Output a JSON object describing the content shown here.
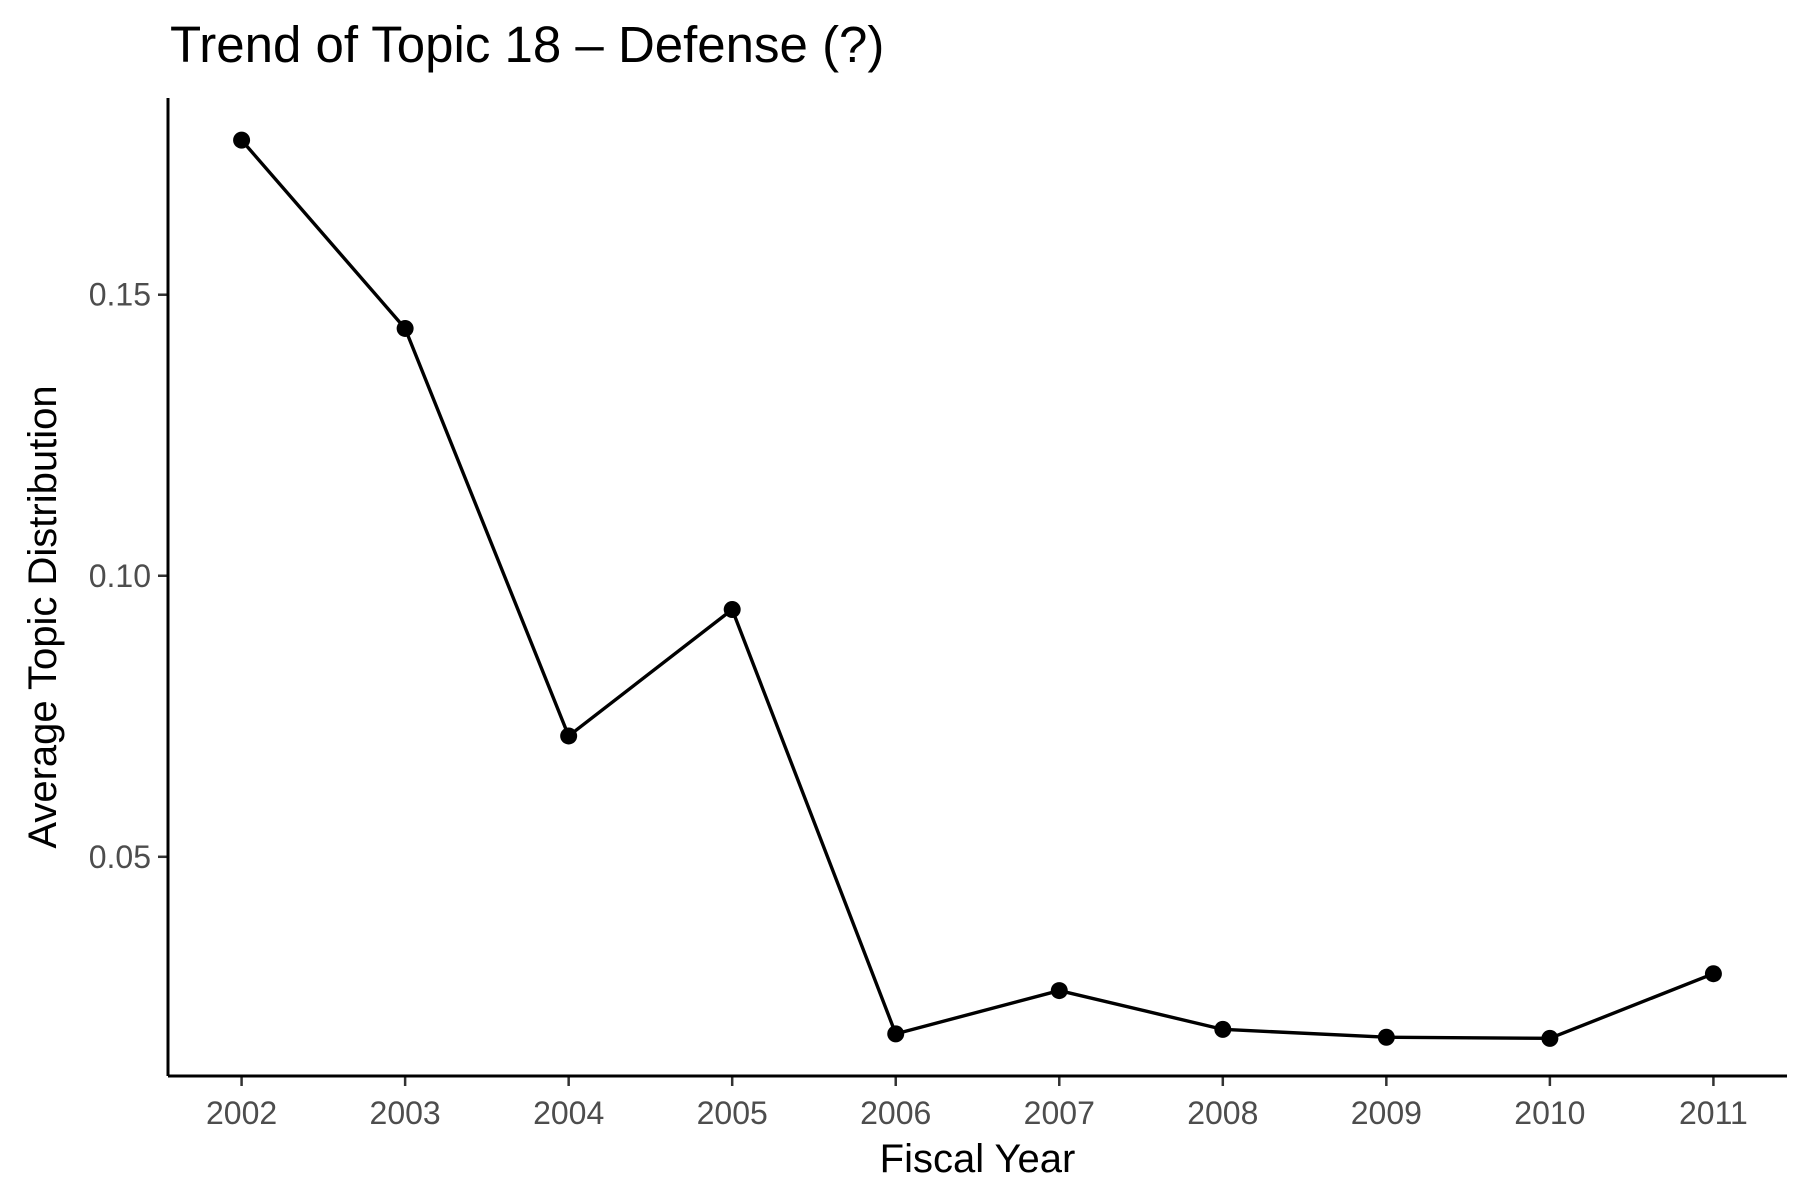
{
  "chart_data": {
    "type": "line",
    "title": "Trend of Topic 18 – Defense (?)",
    "xlabel": "Fiscal Year",
    "ylabel": "Average Topic Distribution",
    "x": [
      2002,
      2003,
      2004,
      2005,
      2006,
      2007,
      2008,
      2009,
      2010,
      2011
    ],
    "x_tick_labels": [
      "2002",
      "2003",
      "2004",
      "2005",
      "2006",
      "2007",
      "2008",
      "2009",
      "2010",
      "2011"
    ],
    "series": [
      {
        "values": [
          0.1775,
          0.144,
          0.0715,
          0.094,
          0.0185,
          0.0262,
          0.0193,
          0.0179,
          0.0177,
          0.0292
        ]
      }
    ],
    "y_ticks": [
      0.05,
      0.1,
      0.15
    ],
    "y_tick_labels": [
      "0.05",
      "0.10",
      "0.15"
    ],
    "xlim": [
      2001.55,
      2011.45
    ],
    "ylim": [
      0.011,
      0.185
    ],
    "grid": false,
    "legend": "none",
    "colors": {
      "line": "#000000",
      "points": "#000000",
      "tick_labels": "#4d4d4d"
    }
  }
}
